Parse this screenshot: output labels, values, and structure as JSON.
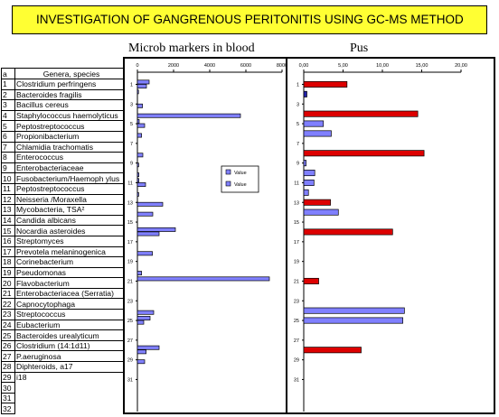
{
  "title": "INVESTIGATION OF GANGRENOUS PERITONITIS USING GC-MS METHOD",
  "panel_titles": {
    "blood": "Microb markers in blood",
    "pus": "Pus"
  },
  "table": {
    "header": {
      "num": "a",
      "name": "Genera, species"
    },
    "rows": [
      {
        "n": "1",
        "name": "Clostridium perfringens"
      },
      {
        "n": "2",
        "name": "Bacteroides fragilis"
      },
      {
        "n": "3",
        "name": "Bacillus cereus"
      },
      {
        "n": "4",
        "name": "Staphylococcus haemolyticus"
      },
      {
        "n": "5",
        "name": "Peptostreptococcus"
      },
      {
        "n": "6",
        "name": "Propionibacterium"
      },
      {
        "n": "7",
        "name": "Chlamidia trachomatis"
      },
      {
        "n": "8",
        "name": "Enterococcus"
      },
      {
        "n": "9",
        "name": "Enterobacteriaceae"
      },
      {
        "n": "10",
        "name": "Fusobacterium/Haemoph ylus"
      },
      {
        "n": "11",
        "name": "Peptostreptococcus"
      },
      {
        "n": "12",
        "name": "Neisseria /Moraxella"
      },
      {
        "n": "13",
        "name": "Mycobacteria, TSA²"
      },
      {
        "n": "14",
        "name": "Candida albicans"
      },
      {
        "n": "15",
        "name": "Nocardia asteroides"
      },
      {
        "n": "16",
        "name": "Streptomyces"
      },
      {
        "n": "17",
        "name": "Prevotela melaninogenica"
      },
      {
        "n": "18",
        "name": "Corinebacterium"
      },
      {
        "n": "19",
        "name": "Pseudomonas"
      },
      {
        "n": "20",
        "name": "Flavobacterium"
      },
      {
        "n": "21",
        "name": "Enterobacteriacea (Serratia)"
      },
      {
        "n": "22",
        "name": "Capnocytophaga"
      },
      {
        "n": "23",
        "name": "Streptococcus"
      },
      {
        "n": "24",
        "name": "Eubacterium"
      },
      {
        "n": "25",
        "name": "Bacteroides urealyticum"
      },
      {
        "n": "26",
        "name": "Clostridium (14:1d11)"
      },
      {
        "n": "27",
        "name": "P.aeruginosa"
      },
      {
        "n": "28",
        "name": "Diphteroids, a17"
      },
      {
        "n": "29",
        "name": "i18"
      },
      {
        "n": "30",
        "name": ""
      },
      {
        "n": "31",
        "name": ""
      },
      {
        "n": "32",
        "name": ""
      }
    ]
  },
  "chart_data": [
    {
      "type": "bar",
      "orientation": "horizontal",
      "title": "Microb markers in blood",
      "xlim": [
        0,
        8000
      ],
      "xticks": [
        "0",
        "2000",
        "4000",
        "6000",
        "8000"
      ],
      "yticks": [
        "1",
        "3",
        "5",
        "7",
        "9",
        "11",
        "13",
        "15",
        "17",
        "19",
        "21",
        "23",
        "25",
        "27",
        "29",
        "31"
      ],
      "legend": {
        "position": "center-right",
        "entries": [
          "Value",
          "Value"
        ]
      },
      "categories": [
        1,
        2,
        3,
        4,
        5,
        6,
        7,
        8,
        9,
        10,
        11,
        12,
        13,
        14,
        15,
        16,
        17,
        18,
        19,
        20,
        21,
        22,
        23,
        24,
        25,
        26,
        27,
        28,
        29,
        30,
        31,
        32
      ],
      "series": [
        {
          "color": "#8080ff",
          "values": [
            650,
            60,
            0,
            0,
            100,
            0,
            0,
            0,
            0,
            0,
            80,
            0,
            0,
            0,
            0,
            2100,
            0,
            0,
            0,
            0,
            7300,
            0,
            0,
            0,
            700,
            0,
            0,
            1200,
            0,
            0,
            0,
            0
          ]
        },
        {
          "color": "#8080ff",
          "values": [
            500,
            0,
            280,
            5700,
            400,
            230,
            0,
            300,
            70,
            80,
            450,
            70,
            1400,
            850,
            0,
            1200,
            0,
            830,
            0,
            230,
            0,
            0,
            0,
            900,
            350,
            0,
            0,
            480,
            400,
            0,
            0,
            0
          ]
        }
      ]
    },
    {
      "type": "bar",
      "orientation": "horizontal",
      "title": "Pus",
      "xlim": [
        0,
        20
      ],
      "xticks": [
        "0,00",
        "5,00",
        "10,00",
        "15,00",
        "20,00"
      ],
      "yticks": [
        "1",
        "3",
        "5",
        "7",
        "9",
        "11",
        "13",
        "15",
        "17",
        "19",
        "21",
        "23",
        "25",
        "27",
        "29",
        "31"
      ],
      "categories": [
        1,
        2,
        3,
        4,
        5,
        6,
        7,
        8,
        9,
        10,
        11,
        12,
        13,
        14,
        15,
        16,
        17,
        18,
        19,
        20,
        21,
        22,
        23,
        24,
        25,
        26,
        27,
        28,
        29,
        30,
        31,
        32
      ],
      "values": [
        5.5,
        0.4,
        0,
        14.5,
        2.5,
        3.5,
        0,
        15.3,
        0.3,
        1.4,
        1.3,
        0.6,
        3.4,
        4.4,
        0,
        11.3,
        0,
        0,
        0,
        0,
        1.9,
        0,
        0,
        12.8,
        12.6,
        0,
        0,
        7.3,
        0,
        0,
        0,
        0
      ],
      "colors": [
        "#dd0000",
        "#2222aa",
        "#dd0000",
        "#dd0000",
        "#8080ff",
        "#8080ff",
        "#dd0000",
        "#dd0000",
        "#8080ff",
        "#8080ff",
        "#8080ff",
        "#8080ff",
        "#dd0000",
        "#8080ff",
        "#dd0000",
        "#dd0000",
        "#dd0000",
        "#dd0000",
        "#dd0000",
        "#dd0000",
        "#dd0000",
        "#dd0000",
        "#dd0000",
        "#8080ff",
        "#8080ff",
        "#dd0000",
        "#dd0000",
        "#dd0000",
        "#dd0000",
        "#dd0000",
        "#dd0000",
        "#dd0000"
      ]
    }
  ]
}
